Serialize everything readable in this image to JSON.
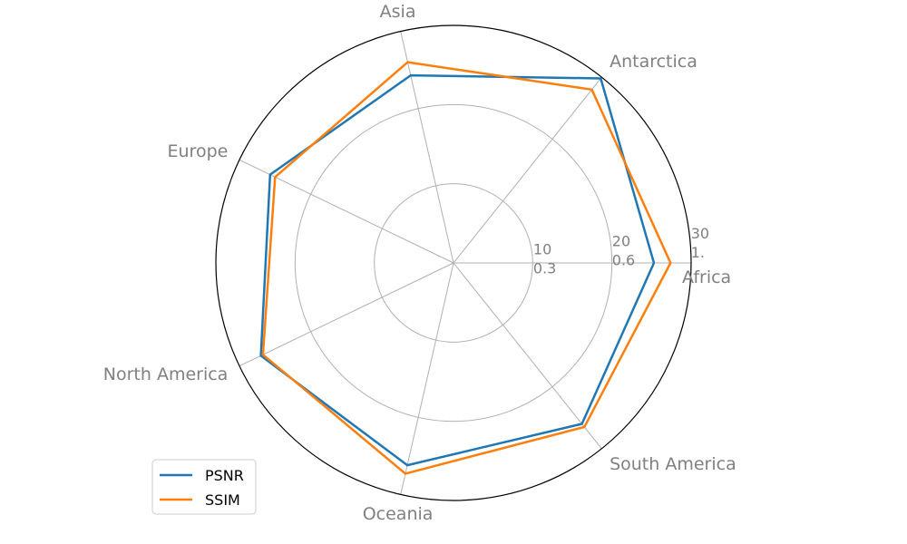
{
  "chart_data": {
    "type": "radar",
    "categories": [
      "Africa",
      "Antarctica",
      "Asia",
      "Europe",
      "North America",
      "Oceania",
      "South America"
    ],
    "series": [
      {
        "name": "PSNR",
        "color": "#1f77b4",
        "values": [
          25.3,
          29.8,
          24.3,
          25.7,
          27.0,
          26.2,
          26.0
        ]
      },
      {
        "name": "SSIM",
        "color": "#ff7f0e",
        "values": [
          27.4,
          28.0,
          26.0,
          25.0,
          26.7,
          27.3,
          26.5
        ]
      }
    ],
    "radial_ticks": [
      {
        "upper": "10",
        "lower": "0.3"
      },
      {
        "upper": "20",
        "lower": "0.6"
      },
      {
        "upper": "30",
        "lower": "1."
      }
    ],
    "rlim": [
      0,
      30
    ],
    "grid": true,
    "legend_position": "lower-left"
  }
}
